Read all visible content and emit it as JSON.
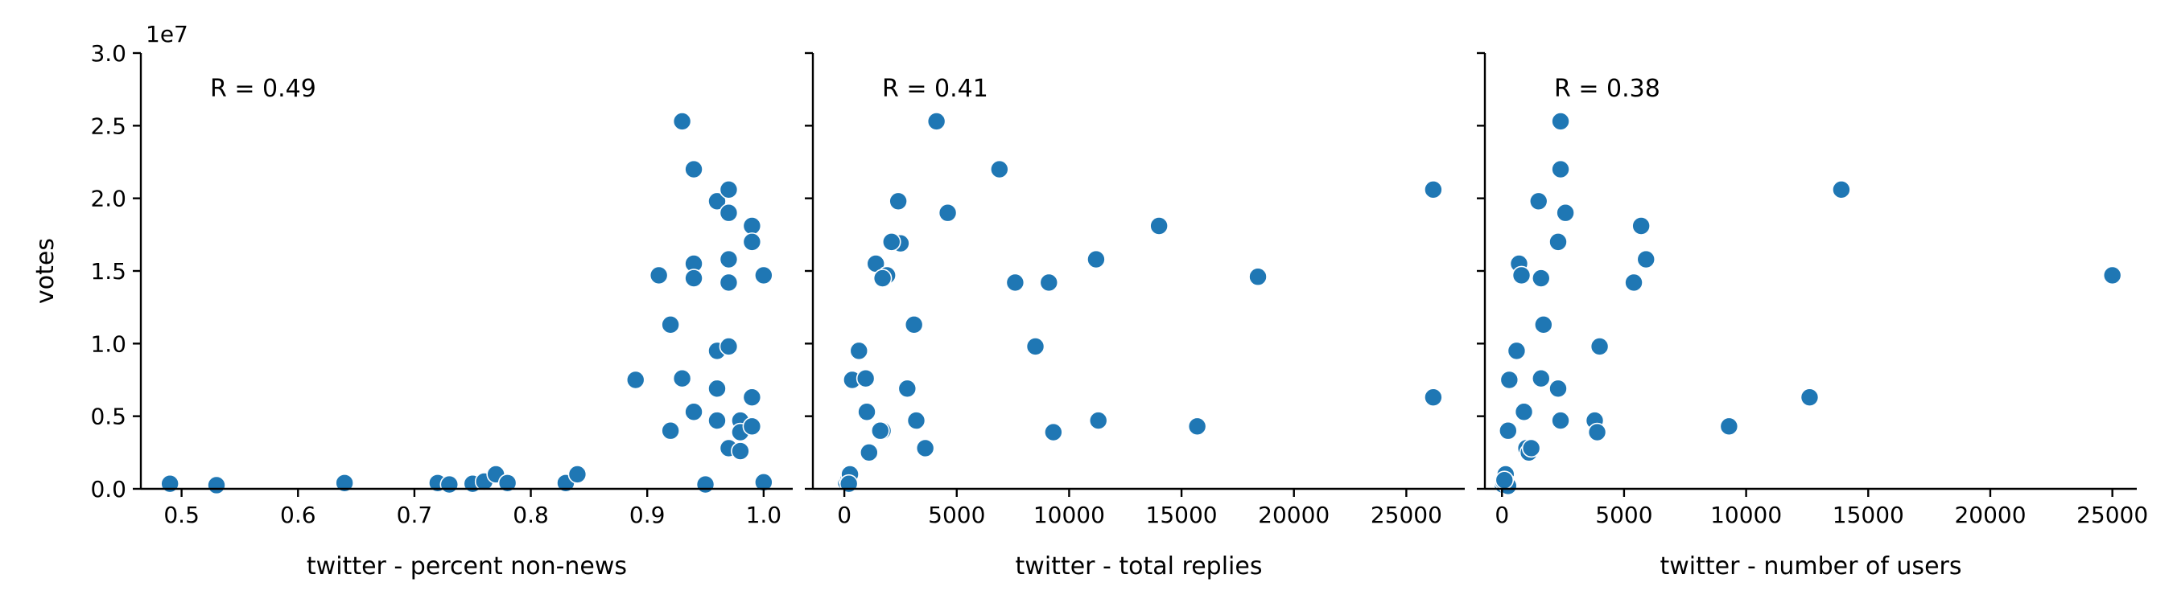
{
  "chart_data": {
    "type": "scatter",
    "color": "#1f77b4",
    "shared_y": {
      "label": "votes",
      "ylim": [
        0,
        30000000
      ],
      "ticks": [
        0,
        5000000,
        10000000,
        15000000,
        20000000,
        25000000,
        30000000
      ],
      "tick_labels": [
        "0.0",
        "0.5",
        "1.0",
        "1.5",
        "2.0",
        "2.5",
        "3.0"
      ],
      "offset_text": "1e7"
    },
    "panels": [
      {
        "xlabel": "twitter - percent non-news",
        "annotation": "R = 0.49",
        "xlim": [
          0.465,
          1.025
        ],
        "xticks": [
          0.5,
          0.6,
          0.7,
          0.8,
          0.9,
          1.0
        ],
        "xtick_labels": [
          "0.5",
          "0.6",
          "0.7",
          "0.8",
          "0.9",
          "1.0"
        ],
        "x": [
          0.49,
          0.53,
          0.64,
          0.72,
          0.73,
          0.75,
          0.76,
          0.77,
          0.78,
          0.83,
          0.84,
          0.89,
          0.91,
          0.92,
          0.92,
          0.93,
          0.93,
          0.94,
          0.94,
          0.94,
          0.94,
          0.95,
          0.96,
          0.96,
          0.96,
          0.96,
          0.97,
          0.97,
          0.97,
          0.97,
          0.97,
          0.97,
          0.98,
          0.98,
          0.98,
          0.99,
          0.99,
          0.99,
          0.99,
          1.0,
          1.0
        ],
        "y": [
          350000,
          250000,
          400000,
          400000,
          300000,
          350000,
          500000,
          1000000,
          400000,
          400000,
          1000000,
          7500000,
          14700000,
          11300000,
          4000000,
          25300000,
          7600000,
          22000000,
          15500000,
          14500000,
          5300000,
          300000,
          19800000,
          9500000,
          6900000,
          4700000,
          20600000,
          19000000,
          15800000,
          14200000,
          9800000,
          2800000,
          4700000,
          3900000,
          2600000,
          18100000,
          17000000,
          6300000,
          4300000,
          14700000,
          450000
        ]
      },
      {
        "xlabel": "twitter - total replies",
        "annotation": "R = 0.41",
        "xlim": [
          -1400,
          27600
        ],
        "xticks": [
          0,
          5000,
          10000,
          15000,
          20000,
          25000
        ],
        "xtick_labels": [
          "0",
          "5000",
          "10000",
          "15000",
          "20000",
          "25000"
        ],
        "x": [
          80,
          150,
          200,
          250,
          200,
          350,
          650,
          950,
          1100,
          1700,
          2400,
          4100,
          6900,
          2500,
          1400,
          1900,
          1700,
          7600,
          4600,
          11200,
          9100,
          8500,
          3100,
          2100,
          2800,
          1000,
          3200,
          3600,
          1600,
          11300,
          9300,
          15700,
          26200,
          14000,
          18400,
          26200
        ],
        "y": [
          450000,
          600000,
          800000,
          1000000,
          350000,
          7500000,
          9500000,
          7600000,
          2500000,
          4000000,
          19800000,
          25300000,
          22000000,
          16900000,
          15500000,
          14700000,
          14500000,
          14200000,
          19000000,
          15800000,
          14200000,
          9800000,
          11300000,
          17000000,
          6900000,
          5300000,
          4700000,
          2800000,
          4000000,
          4700000,
          3900000,
          4300000,
          20600000,
          18100000,
          14600000,
          6300000
        ]
      },
      {
        "xlabel": "twitter - number of users",
        "annotation": "R = 0.38",
        "xlim": [
          -700,
          26000
        ],
        "xticks": [
          0,
          5000,
          10000,
          15000,
          20000,
          25000
        ],
        "xtick_labels": [
          "0",
          "5000",
          "10000",
          "15000",
          "20000",
          "25000"
        ],
        "x": [
          30,
          60,
          100,
          150,
          200,
          250,
          300,
          100,
          250,
          700,
          800,
          600,
          900,
          1000,
          1100,
          1500,
          1600,
          1700,
          1600,
          2300,
          2400,
          2400,
          2600,
          2300,
          2400,
          3800,
          3900,
          4000,
          5400,
          5700,
          5900,
          9300,
          12600,
          13900,
          25000,
          1200
        ],
        "y": [
          300000,
          500000,
          800000,
          1000000,
          400000,
          200000,
          7500000,
          600000,
          4000000,
          15500000,
          14700000,
          9500000,
          5300000,
          2800000,
          2500000,
          19800000,
          14500000,
          11300000,
          7600000,
          17000000,
          25300000,
          22000000,
          19000000,
          6900000,
          4700000,
          4700000,
          3900000,
          9800000,
          14200000,
          18100000,
          15800000,
          4300000,
          6300000,
          20600000,
          14700000,
          2800000
        ]
      }
    ]
  }
}
